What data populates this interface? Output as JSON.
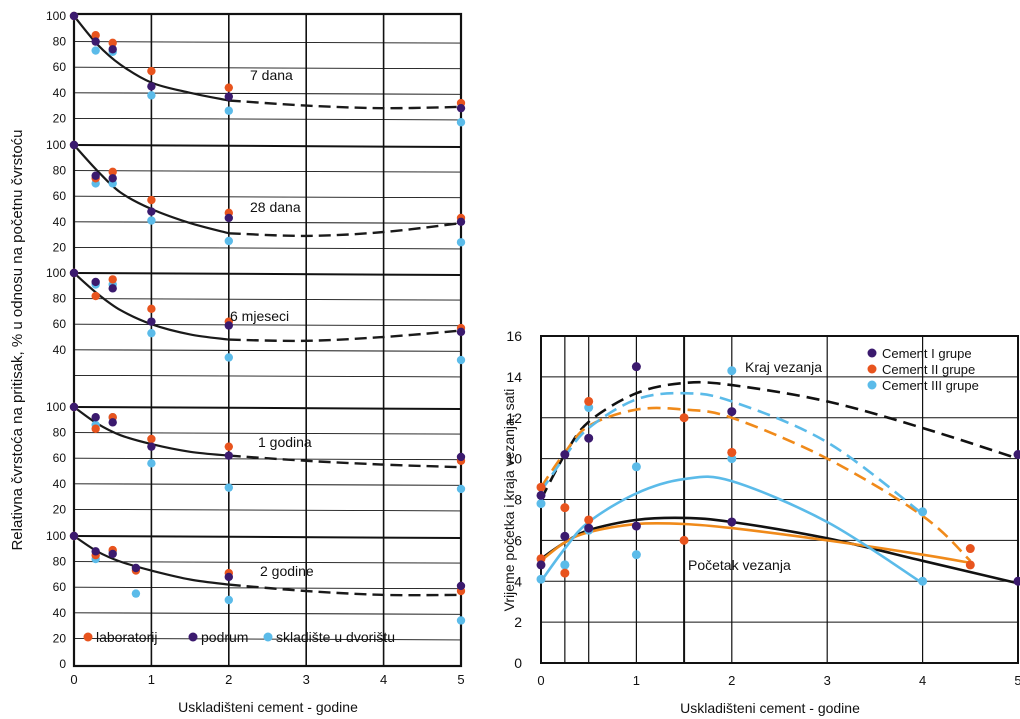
{
  "colors": {
    "laboratorij": "#e8541e",
    "podrum": "#3b1a6e",
    "skladiste": "#5bbbe9",
    "cement_I": "#3b1a6e",
    "cement_II": "#e8541e",
    "cement_III": "#5bbbe9",
    "fit_left": "#1a1a1a",
    "curve_I": "#111111",
    "curve_II": "#f08a1a",
    "curve_III": "#5bbbe9"
  },
  "chart_data": [
    {
      "type": "scatter",
      "ylabel": "Relativna čvrstoća na pritisak, % u odnosu na početnu čvrstoću",
      "xlabel": "Uskladišteni cement - godine",
      "xticks": [
        "0",
        "1",
        "2",
        "3",
        "4",
        "5"
      ],
      "xlim": [
        0,
        5
      ],
      "legend": [
        "laboratorij",
        "podrum",
        "skladište u dvorištu"
      ],
      "legend_placement": "bottom",
      "panels": [
        {
          "label": "7 dana",
          "ylim": [
            10,
            100
          ],
          "yticks": [
            "100",
            "80",
            "60",
            "40",
            "20"
          ],
          "series": [
            {
              "name": "laboratorij",
              "x": [
                0,
                0.28,
                0.5,
                1,
                2,
                5
              ],
              "y": [
                100,
                85,
                79,
                57,
                44,
                32
              ]
            },
            {
              "name": "podrum",
              "x": [
                0,
                0.28,
                0.5,
                1,
                2,
                5
              ],
              "y": [
                100,
                80,
                74,
                45,
                37,
                28
              ]
            },
            {
              "name": "skladište u dvorištu",
              "x": [
                0,
                0.28,
                0.5,
                1,
                2,
                5
              ],
              "y": [
                100,
                73,
                72,
                38,
                26,
                17
              ]
            }
          ],
          "fit": {
            "x": [
              0,
              0.3,
              0.6,
              1,
              1.5,
              2,
              3,
              4,
              5
            ],
            "y": [
              100,
              78,
              62,
              48,
              40,
              34,
              30,
              28,
              29
            ]
          }
        },
        {
          "label": "28 dana",
          "ylim": [
            10,
            100
          ],
          "yticks": [
            "100",
            "80",
            "60",
            "40",
            "20"
          ],
          "series": [
            {
              "name": "laboratorij",
              "x": [
                0,
                0.28,
                0.5,
                1,
                2,
                5
              ],
              "y": [
                100,
                74,
                79,
                57,
                47,
                43
              ]
            },
            {
              "name": "podrum",
              "x": [
                0,
                0.28,
                0.5,
                1,
                2,
                5
              ],
              "y": [
                100,
                76,
                74,
                48,
                43,
                40
              ]
            },
            {
              "name": "skladište u dvorištu",
              "x": [
                0,
                0.28,
                0.5,
                1,
                2,
                5
              ],
              "y": [
                100,
                70,
                70,
                41,
                25,
                24
              ]
            }
          ],
          "fit": {
            "x": [
              0,
              0.3,
              0.6,
              1,
              1.5,
              2,
              3,
              4,
              5
            ],
            "y": [
              100,
              80,
              63,
              50,
              39,
              31,
              29,
              32,
              39
            ]
          }
        },
        {
          "label": "6 mjeseci",
          "ylim": [
            10,
            100
          ],
          "yticks": [
            "100",
            "80",
            "60",
            "40"
          ],
          "series": [
            {
              "name": "laboratorij",
              "x": [
                0,
                0.28,
                0.5,
                1,
                2,
                5
              ],
              "y": [
                100,
                82,
                95,
                72,
                62,
                57
              ]
            },
            {
              "name": "podrum",
              "x": [
                0,
                0.28,
                0.5,
                1,
                2,
                5
              ],
              "y": [
                100,
                93,
                88,
                62,
                59,
                54
              ]
            },
            {
              "name": "skladište u dvorištu",
              "x": [
                0,
                0.28,
                0.5,
                1,
                2,
                5
              ],
              "y": [
                100,
                91,
                91,
                53,
                34,
                32
              ]
            }
          ],
          "fit": {
            "x": [
              0,
              0.3,
              0.6,
              1,
              1.5,
              2,
              3,
              4,
              5
            ],
            "y": [
              100,
              84,
              71,
              60,
              52,
              48,
              47,
              50,
              55
            ]
          }
        },
        {
          "label": "1 godina",
          "ylim": [
            10,
            100
          ],
          "yticks": [
            "100",
            "80",
            "60",
            "40",
            "20"
          ],
          "series": [
            {
              "name": "laboratorij",
              "x": [
                0,
                0.28,
                0.5,
                1,
                2,
                5
              ],
              "y": [
                100,
                83,
                92,
                75,
                69,
                58
              ]
            },
            {
              "name": "podrum",
              "x": [
                0,
                0.28,
                0.5,
                1,
                2,
                5
              ],
              "y": [
                100,
                92,
                88,
                69,
                62,
                61
              ]
            },
            {
              "name": "skladište u dvorištu",
              "x": [
                0,
                0.28,
                0.5,
                1,
                2,
                5
              ],
              "y": [
                100,
                86,
                92,
                56,
                37,
                36
              ]
            }
          ],
          "fit": {
            "x": [
              0,
              0.3,
              0.6,
              1,
              1.5,
              2,
              3,
              4,
              5
            ],
            "y": [
              100,
              87,
              78,
              71,
              65,
              62,
              58,
              55,
              53
            ]
          }
        },
        {
          "label": "2 godine",
          "ylim": [
            10,
            100
          ],
          "yticks": [
            "100",
            "80",
            "60",
            "40",
            "20",
            "0"
          ],
          "series": [
            {
              "name": "laboratorij",
              "x": [
                0,
                0.28,
                0.5,
                0.8,
                2,
                5
              ],
              "y": [
                100,
                85,
                89,
                73,
                71,
                57
              ]
            },
            {
              "name": "podrum",
              "x": [
                0,
                0.28,
                0.5,
                0.8,
                2,
                5
              ],
              "y": [
                100,
                88,
                86,
                75,
                68,
                61
              ]
            },
            {
              "name": "skladište u dvorištu",
              "x": [
                0,
                0.28,
                0.5,
                0.8,
                2,
                5
              ],
              "y": [
                100,
                82,
                88,
                55,
                50,
                34
              ]
            }
          ],
          "fit": {
            "x": [
              0,
              0.3,
              0.6,
              1,
              1.5,
              2,
              3,
              4,
              5
            ],
            "y": [
              100,
              88,
              80,
              73,
              66,
              62,
              57,
              54,
              54
            ]
          }
        }
      ]
    },
    {
      "type": "scatter",
      "ylabel": "Vrijeme početka i kraja vezanja, sati",
      "xlabel": "Uskladišteni cement - godine",
      "xlim": [
        0,
        5
      ],
      "ylim": [
        0,
        16
      ],
      "xticks": [
        "0",
        "1",
        "2",
        "3",
        "4",
        "5"
      ],
      "yticks": [
        "0",
        "2",
        "4",
        "6",
        "8",
        "10",
        "12",
        "14",
        "16"
      ],
      "annotations": [
        "Kraj vezanja",
        "Početak vezanja"
      ],
      "legend": [
        "Cement I grupe",
        "Cement II grupe",
        "Cement III grupe"
      ],
      "legend_placement": "top-right",
      "series": [
        {
          "name": "Cement I grupe",
          "x": [
            0,
            0.25,
            0.5,
            1,
            2,
            5,
            0,
            0.25,
            0.5,
            1,
            2,
            5
          ],
          "y": [
            8.2,
            10.2,
            11.0,
            14.5,
            12.3,
            10.2,
            4.8,
            6.2,
            6.6,
            6.7,
            6.9,
            4.0
          ]
        },
        {
          "name": "Cement II grupe",
          "x": [
            0,
            0.25,
            0.5,
            1.5,
            2,
            4.5,
            0,
            0.25,
            0.5,
            1.5,
            2,
            4.5
          ],
          "y": [
            8.6,
            7.6,
            12.8,
            12.0,
            10.3,
            5.6,
            5.1,
            4.4,
            7.0,
            6.0,
            10.3,
            4.8
          ]
        },
        {
          "name": "Cement III grupe",
          "x": [
            0,
            0.25,
            0.5,
            1,
            2,
            4,
            0,
            0.25,
            0.5,
            1,
            2,
            4
          ],
          "y": [
            7.8,
            4.8,
            12.5,
            9.6,
            10.0,
            7.4,
            4.1,
            4.8,
            6.5,
            5.3,
            14.3,
            4.0
          ]
        }
      ],
      "curves": [
        {
          "group": "Cement I grupe",
          "kind": "kraj",
          "x": [
            0,
            0.25,
            0.5,
            1,
            1.5,
            2,
            3,
            4,
            5
          ],
          "y": [
            8.0,
            10.2,
            11.8,
            13.2,
            13.7,
            13.6,
            12.8,
            11.5,
            10.0
          ]
        },
        {
          "group": "Cement II grupe",
          "kind": "kraj",
          "x": [
            0,
            0.25,
            0.5,
            1,
            1.5,
            2,
            3,
            4,
            4.5
          ],
          "y": [
            8.6,
            10.3,
            11.6,
            12.4,
            12.4,
            12.0,
            10.0,
            7.2,
            5.0
          ]
        },
        {
          "group": "Cement III grupe",
          "kind": "kraj",
          "x": [
            0,
            0.25,
            0.5,
            1,
            1.5,
            2,
            3,
            4
          ],
          "y": [
            8.4,
            10.1,
            11.5,
            12.9,
            13.2,
            12.8,
            10.8,
            7.3
          ]
        },
        {
          "group": "Cement I grupe",
          "kind": "početak",
          "x": [
            0,
            0.25,
            0.5,
            1,
            1.5,
            2,
            3,
            4,
            5
          ],
          "y": [
            5.1,
            5.9,
            6.5,
            7.0,
            7.1,
            6.9,
            6.1,
            5.0,
            3.9
          ]
        },
        {
          "group": "Cement II grupe",
          "kind": "početak",
          "x": [
            0,
            0.25,
            0.5,
            1,
            1.5,
            2,
            3,
            4,
            4.5
          ],
          "y": [
            5.0,
            5.9,
            6.4,
            6.8,
            6.8,
            6.6,
            6.0,
            5.3,
            4.9
          ]
        },
        {
          "group": "Cement III grupe",
          "kind": "početak",
          "x": [
            0,
            0.25,
            0.5,
            1,
            1.5,
            2,
            3,
            4
          ],
          "y": [
            4.0,
            5.6,
            6.9,
            8.3,
            9.0,
            8.9,
            6.9,
            3.9
          ]
        }
      ]
    }
  ]
}
